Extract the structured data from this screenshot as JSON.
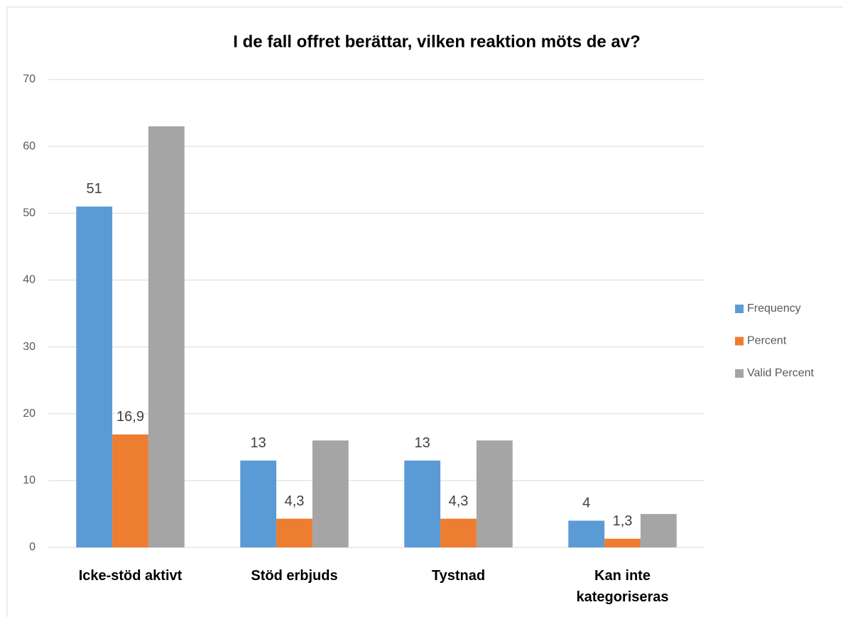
{
  "chart_data": {
    "type": "bar",
    "title": "I de fall offret berättar, vilken reaktion möts de av?",
    "categories": [
      "Icke-stöd aktivt",
      "Stöd erbjuds",
      "Tystnad",
      "Kan inte kategoriseras"
    ],
    "series": [
      {
        "name": "Frequency",
        "color": "#5b9bd5",
        "values": [
          51,
          13,
          13,
          4
        ],
        "data_labels": true
      },
      {
        "name": "Percent",
        "color": "#ed7d31",
        "values": [
          16.9,
          4.3,
          4.3,
          1.3
        ],
        "value_labels": [
          "16,9",
          "4,3",
          "4,3",
          "1,3"
        ],
        "data_labels": true
      },
      {
        "name": "Valid Percent",
        "color": "#a5a5a5",
        "values": [
          63,
          16,
          16,
          5
        ],
        "data_labels": false
      }
    ],
    "ylim": [
      0,
      70
    ],
    "yticks": [
      0,
      10,
      20,
      30,
      40,
      50,
      60,
      70
    ],
    "grid": true,
    "legend": "right"
  }
}
